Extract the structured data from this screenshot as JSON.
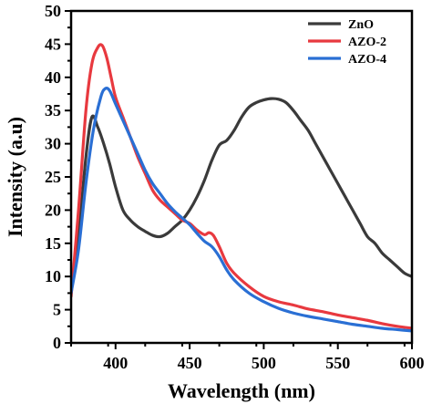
{
  "chart_data": {
    "type": "line",
    "title": "",
    "xlabel": "Wavelength (nm)",
    "ylabel": "Intensity (a.u)",
    "xlim": [
      370,
      600
    ],
    "ylim": [
      0,
      50
    ],
    "xticks": [
      400,
      450,
      500,
      550,
      600
    ],
    "yticks": [
      0,
      5,
      10,
      15,
      20,
      25,
      30,
      35,
      40,
      45,
      50
    ],
    "grid": false,
    "legend_position": "top-right",
    "series": [
      {
        "name": "ZnO",
        "color": "#3a3a3a",
        "x": [
          370,
          375,
          380,
          384,
          388,
          392,
          396,
          400,
          405,
          410,
          415,
          420,
          425,
          430,
          435,
          440,
          445,
          450,
          455,
          460,
          465,
          470,
          475,
          480,
          485,
          490,
          495,
          500,
          505,
          510,
          515,
          520,
          525,
          530,
          535,
          540,
          545,
          550,
          555,
          560,
          565,
          570,
          575,
          580,
          585,
          590,
          595,
          600
        ],
        "y": [
          8,
          16,
          28,
          34,
          32.5,
          30,
          27,
          23.5,
          20,
          18.5,
          17.5,
          16.8,
          16.2,
          16,
          16.5,
          17.5,
          18.5,
          20,
          22,
          24.5,
          27.5,
          29.8,
          30.5,
          32,
          34,
          35.5,
          36.2,
          36.6,
          36.8,
          36.7,
          36.2,
          35,
          33.5,
          32,
          30,
          28,
          26,
          24,
          22,
          20,
          18,
          16,
          15,
          13.5,
          12.5,
          11.5,
          10.5,
          10
        ]
      },
      {
        "name": "AZO-2",
        "color": "#e8393f",
        "x": [
          370,
          375,
          380,
          384,
          388,
          391,
          394,
          397,
          400,
          405,
          410,
          415,
          420,
          425,
          430,
          435,
          440,
          445,
          450,
          455,
          460,
          463,
          466,
          470,
          475,
          480,
          490,
          500,
          510,
          520,
          530,
          540,
          550,
          560,
          570,
          580,
          590,
          600
        ],
        "y": [
          7,
          20,
          35,
          42,
          44.5,
          44.8,
          43,
          40,
          37,
          34,
          31,
          28,
          25.5,
          23,
          21.5,
          20.5,
          19.5,
          18.5,
          18,
          17,
          16.3,
          16.6,
          16.2,
          14.5,
          12,
          10.5,
          8.5,
          7,
          6.2,
          5.7,
          5.1,
          4.7,
          4.2,
          3.8,
          3.4,
          2.9,
          2.5,
          2.2
        ]
      },
      {
        "name": "AZO-4",
        "color": "#2a6fd4",
        "x": [
          370,
          375,
          380,
          385,
          390,
          393,
          396,
          400,
          405,
          410,
          415,
          420,
          425,
          430,
          435,
          440,
          445,
          450,
          455,
          460,
          465,
          470,
          475,
          480,
          490,
          500,
          510,
          520,
          530,
          540,
          550,
          560,
          570,
          580,
          590,
          600
        ],
        "y": [
          7.5,
          14,
          24,
          32,
          37,
          38.3,
          38,
          36,
          33.5,
          31,
          28.5,
          26,
          24,
          22.5,
          21,
          19.8,
          18.8,
          17.8,
          16.5,
          15.3,
          14.5,
          13,
          11,
          9.5,
          7.5,
          6.2,
          5.2,
          4.5,
          4,
          3.6,
          3.2,
          2.8,
          2.5,
          2.2,
          2,
          1.8
        ]
      }
    ]
  }
}
